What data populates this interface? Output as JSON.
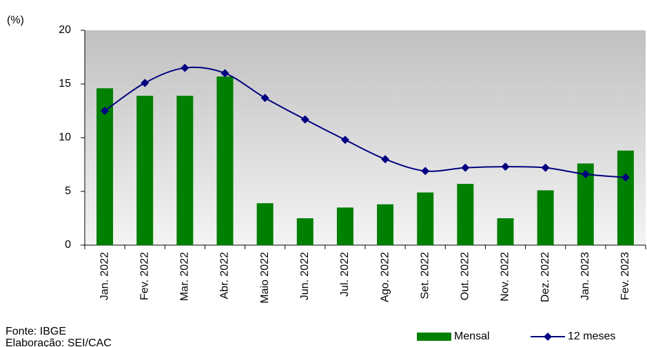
{
  "chart_data": {
    "type": "bar_line",
    "y_label": "(%)",
    "categories": [
      "Jan. 2022",
      "Fev. 2022",
      "Mar. 2022",
      "Abr. 2022",
      "Maio 2022",
      "Jun. 2022",
      "Jul. 2022",
      "Ago. 2022",
      "Set. 2022",
      "Out. 2022",
      "Nov. 2022",
      "Dez. 2022",
      "Jan. 2023",
      "Fev. 2023"
    ],
    "series": [
      {
        "name": "Mensal",
        "type": "bar",
        "color": "#008000",
        "values": [
          14.6,
          13.9,
          13.9,
          15.7,
          3.9,
          2.5,
          3.5,
          3.8,
          4.9,
          5.7,
          2.5,
          5.1,
          7.6,
          8.8
        ]
      },
      {
        "name": "12 meses",
        "type": "line",
        "color": "#000080",
        "values": [
          12.5,
          15.1,
          16.5,
          16.0,
          13.7,
          11.7,
          9.8,
          8.0,
          6.9,
          7.2,
          7.3,
          7.2,
          6.6,
          6.3
        ]
      }
    ],
    "ylim": [
      0,
      20
    ],
    "yticks": [
      0,
      5,
      10,
      15,
      20
    ],
    "source": "Fonte: IBGE",
    "credits": "Elaboração: SEI/CAC"
  }
}
